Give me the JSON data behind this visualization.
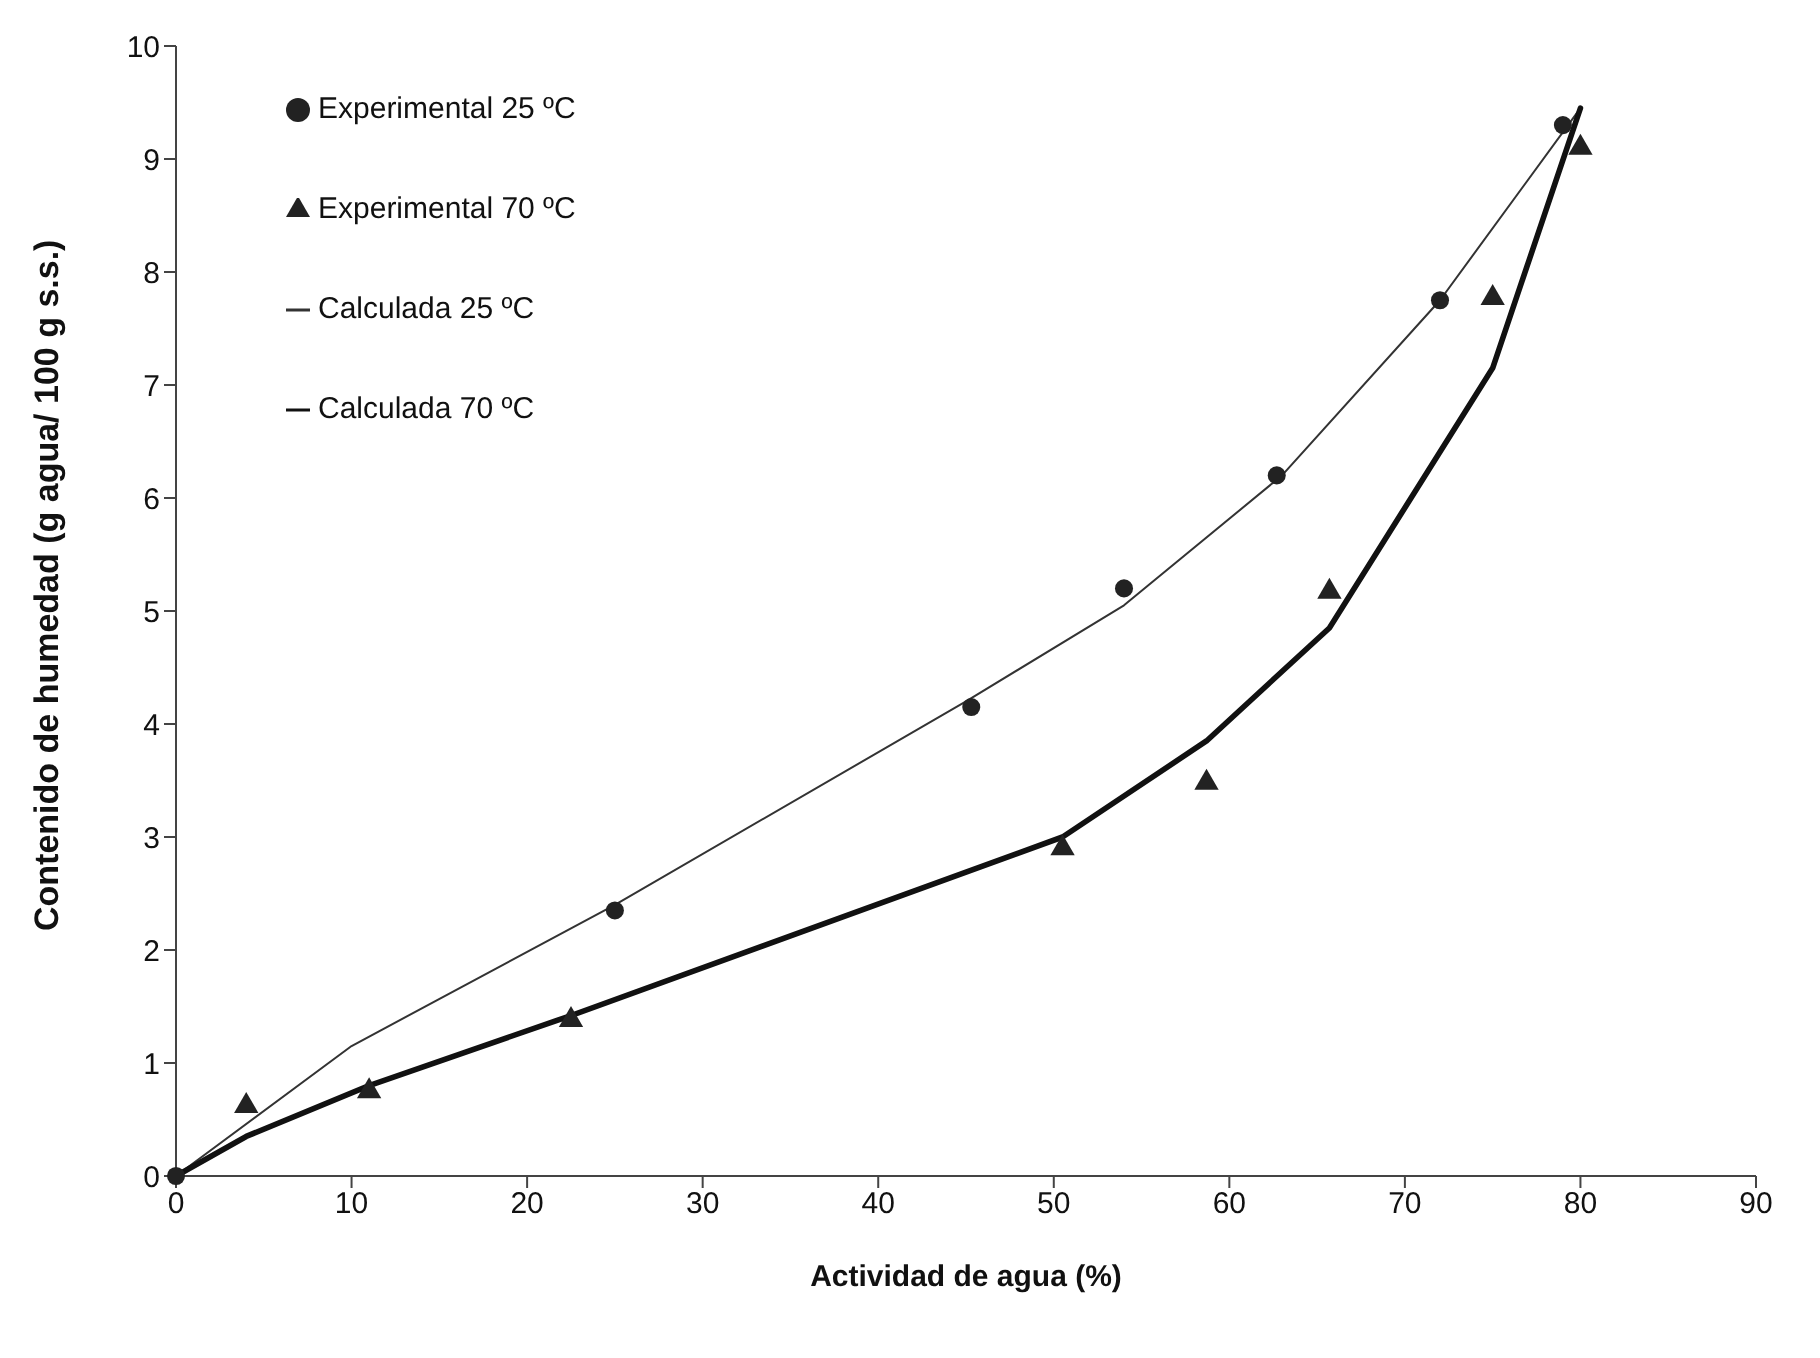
{
  "chart_data": {
    "type": "scatter",
    "xlabel": "Actividad de agua (%)",
    "ylabel": "Contenido de humedad (g agua/ 100 g s.s.)",
    "xlim": [
      0,
      90
    ],
    "xticks": [
      0,
      10,
      20,
      30,
      40,
      50,
      60,
      70,
      80,
      90
    ],
    "ylim": [
      0,
      10
    ],
    "yticks": [
      0,
      1,
      2,
      3,
      4,
      5,
      6,
      7,
      8,
      9,
      10
    ],
    "grid": false,
    "legend": "top left",
    "series": [
      {
        "name": "Experimental 25 ºC",
        "type": "scatter",
        "marker": "circle",
        "color": "#222222",
        "x": [
          0,
          25,
          45.3,
          54,
          62.7,
          72,
          79
        ],
        "values": [
          0,
          2.35,
          4.15,
          5.2,
          6.2,
          7.75,
          9.3
        ]
      },
      {
        "name": "Experimental 70 ºC",
        "type": "scatter",
        "marker": "triangle",
        "color": "#222222",
        "x": [
          4,
          11,
          22.5,
          50.5,
          58.7,
          65.7,
          75,
          80
        ],
        "values": [
          0.62,
          0.75,
          1.38,
          2.9,
          3.48,
          5.17,
          7.77,
          9.1
        ]
      },
      {
        "name": "Calculada 25 ºC",
        "type": "line",
        "marker": "none",
        "line_style": "solid",
        "color": "#333333",
        "x": [
          0,
          10,
          25,
          45,
          54,
          63,
          72,
          80
        ],
        "values": [
          0,
          1.15,
          2.4,
          4.2,
          5.05,
          6.2,
          7.75,
          9.45
        ]
      },
      {
        "name": "Calculada 70 ºC",
        "type": "line",
        "marker": "none",
        "line_style": "solid",
        "color": "#111111",
        "x": [
          0,
          4,
          11,
          22.5,
          50.5,
          58.7,
          65.7,
          75,
          80
        ],
        "values": [
          0,
          0.35,
          0.8,
          1.42,
          3.0,
          3.85,
          4.85,
          7.15,
          9.45
        ]
      }
    ]
  }
}
